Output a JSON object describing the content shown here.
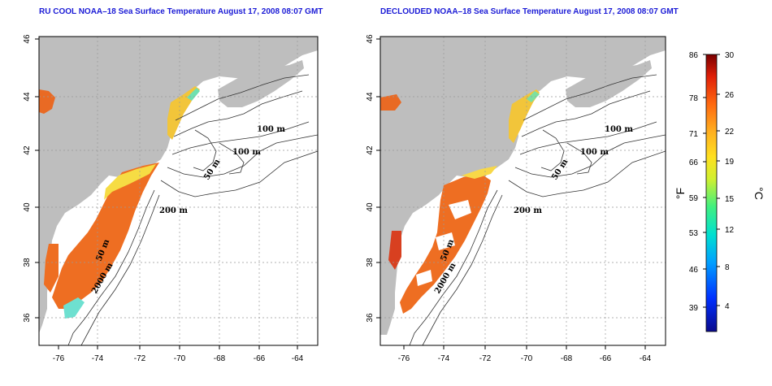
{
  "titles": {
    "left": "RU COOL NOAA–18 Sea Surface Temperature August 17, 2008 08:07 GMT",
    "right": "DECLOUDED NOAA–18 Sea Surface Temperature August 17, 2008 08:07 GMT"
  },
  "axes": {
    "lon_ticks": [
      "-76",
      "-74",
      "-72",
      "-70",
      "-68",
      "-66",
      "-64"
    ],
    "lat_ticks": [
      "46",
      "44",
      "42",
      "40",
      "38",
      "36"
    ]
  },
  "contour_labels": [
    "100 m",
    "100 m",
    "50 m",
    "200 m",
    "50 m",
    "2000 m"
  ],
  "colorbar": {
    "fahrenheit_ticks": [
      "86",
      "78",
      "71",
      "66",
      "59",
      "53",
      "46",
      "39"
    ],
    "celsius_ticks": [
      "30",
      "26",
      "22",
      "19",
      "15",
      "12",
      "8",
      "4"
    ],
    "fahrenheit_unit": "°F",
    "celsius_unit": "°C"
  },
  "colors": {
    "title": "#1b1bd6",
    "land": "#bebebe",
    "sst_warm": "#ee6e22",
    "sst_hot": "#c8401a",
    "sst_mid": "#f7c728",
    "sst_cool": "#3fe0c0"
  }
}
